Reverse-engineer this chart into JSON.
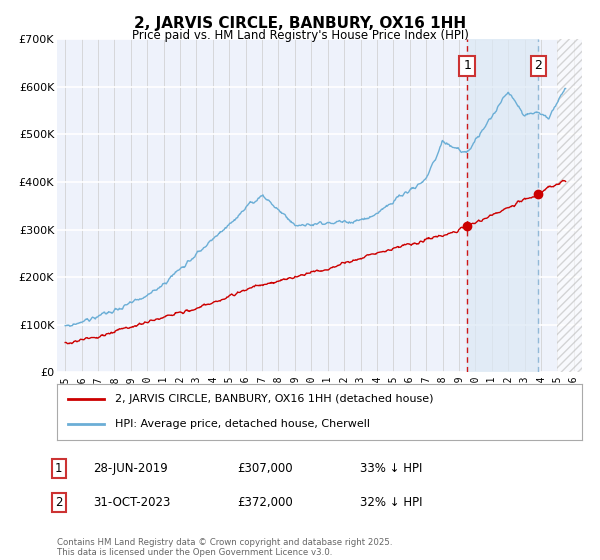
{
  "title": "2, JARVIS CIRCLE, BANBURY, OX16 1HH",
  "subtitle": "Price paid vs. HM Land Registry's House Price Index (HPI)",
  "hpi_color": "#6baed6",
  "price_color": "#cc0000",
  "marker1_year": 2019.5,
  "marker2_year": 2023.83,
  "marker1_label": "1",
  "marker2_label": "2",
  "marker1_price": 307000,
  "marker2_price": 372000,
  "marker1_date_str": "28-JUN-2019",
  "marker2_date_str": "31-OCT-2023",
  "marker1_pct": "33% ↓ HPI",
  "marker2_pct": "32% ↓ HPI",
  "legend_label_price": "2, JARVIS CIRCLE, BANBURY, OX16 1HH (detached house)",
  "legend_label_hpi": "HPI: Average price, detached house, Cherwell",
  "footer": "Contains HM Land Registry data © Crown copyright and database right 2025.\nThis data is licensed under the Open Government Licence v3.0.",
  "ylim": [
    0,
    700000
  ],
  "yticks": [
    0,
    100000,
    200000,
    300000,
    400000,
    500000,
    600000,
    700000
  ],
  "xlim_start": 1994.5,
  "xlim_end": 2026.5,
  "background_color": "#ffffff",
  "plot_bg_color": "#eef2fb"
}
